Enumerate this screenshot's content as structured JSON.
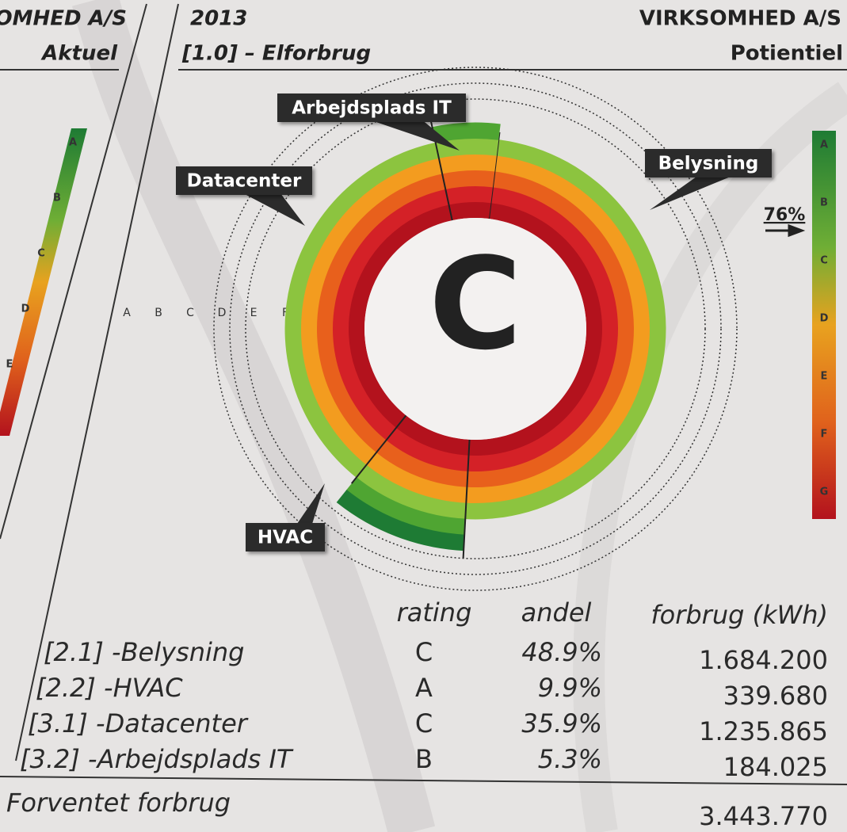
{
  "left_panel": {
    "company": "OMHED A/S",
    "label": "Aktuel"
  },
  "header": {
    "year": "2013",
    "section": "[1.0] – Elforbrug",
    "company": "VIRKSOMHED A/S",
    "label": "Potientiel"
  },
  "scale": [
    "A",
    "B",
    "C",
    "D",
    "E",
    "F",
    "G"
  ],
  "chart": {
    "rating": "C",
    "pointer": "76%"
  },
  "table": {
    "columns": [
      "rating",
      "andel",
      "forbrug (kWh)"
    ],
    "rows": [
      {
        "name": "[2.1] -Belysning",
        "label": "Belysning",
        "rating": "C",
        "andel": "48.9%",
        "forbrug": "1.684.200"
      },
      {
        "name": "[2.2] -HVAC",
        "label": "HVAC",
        "rating": "A",
        "andel": "9.9%",
        "forbrug": "339.680"
      },
      {
        "name": "[3.1] -Datacenter",
        "label": "Datacenter",
        "rating": "C",
        "andel": "35.9%",
        "forbrug": "1.235.865"
      },
      {
        "name": "[3.2] -Arbejdsplads IT",
        "label": "Arbejdsplads IT",
        "rating": "B",
        "andel": "5.3%",
        "forbrug": "184.025"
      }
    ]
  },
  "total": {
    "label": "Forventet forbrug",
    "value": "3.443.770"
  }
}
